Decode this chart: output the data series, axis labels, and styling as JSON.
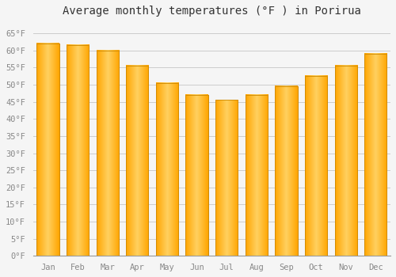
{
  "months": [
    "Jan",
    "Feb",
    "Mar",
    "Apr",
    "May",
    "Jun",
    "Jul",
    "Aug",
    "Sep",
    "Oct",
    "Nov",
    "Dec"
  ],
  "values": [
    62,
    61.5,
    60,
    55.5,
    50.5,
    47,
    45.5,
    47,
    49.5,
    52.5,
    55.5,
    59
  ],
  "bar_color_main": "#FFA500",
  "bar_color_light": "#FFD060",
  "bar_color_dark": "#E08800",
  "bar_edge_color": "#CC8800",
  "title": "Average monthly temperatures (°F ) in Porirua",
  "ylim": [
    0,
    68
  ],
  "yticks": [
    0,
    5,
    10,
    15,
    20,
    25,
    30,
    35,
    40,
    45,
    50,
    55,
    60,
    65
  ],
  "ytick_labels": [
    "0°F",
    "5°F",
    "10°F",
    "15°F",
    "20°F",
    "25°F",
    "30°F",
    "35°F",
    "40°F",
    "45°F",
    "50°F",
    "55°F",
    "60°F",
    "65°F"
  ],
  "background_color": "#f5f5f5",
  "plot_bg_color": "#f5f5f5",
  "grid_color": "#cccccc",
  "title_fontsize": 10,
  "tick_fontsize": 7.5,
  "bar_width": 0.75
}
